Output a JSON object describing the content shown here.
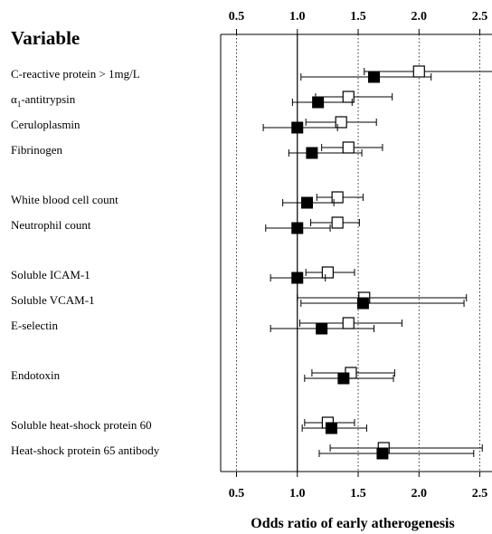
{
  "chart_data": {
    "type": "scatter",
    "subtype": "forest-plot",
    "title": "",
    "row_header": "Variable",
    "xlabel": "Odds ratio of early atherogenesis",
    "ylabel": "",
    "xlim": [
      0.37,
      2.6
    ],
    "x_ticks": [
      0.5,
      1.0,
      1.5,
      2.0,
      2.5
    ],
    "x_tick_labels": [
      "0.5",
      "1.0",
      "1.5",
      "2.0",
      "2.5"
    ],
    "ticks_top_and_bottom": true,
    "grid": "dotted vertical lines at each tick",
    "reference_line": 1.0,
    "legend": "none",
    "markers": {
      "open_square_color": "#ffffff",
      "filled_square_color": "#000000",
      "line_color": "#000000"
    },
    "rows": [
      {
        "label": "C-reactive protein > 1mg/L",
        "label_prefix": "",
        "label_sub": "",
        "label_rest": "",
        "group": 0,
        "open": {
          "or": 2.0,
          "lo": 1.55,
          "hi": 2.65
        },
        "filled": {
          "or": 1.63,
          "lo": 1.03,
          "hi": 2.1
        }
      },
      {
        "label": "",
        "label_prefix": "α",
        "label_sub": "1",
        "label_rest": "-antitrypsin",
        "group": 0,
        "open": {
          "or": 1.42,
          "lo": 1.15,
          "hi": 1.78
        },
        "filled": {
          "or": 1.17,
          "lo": 0.96,
          "hi": 1.45
        }
      },
      {
        "label": "Ceruloplasmin",
        "label_prefix": "",
        "label_sub": "",
        "label_rest": "",
        "group": 0,
        "open": {
          "or": 1.36,
          "lo": 1.07,
          "hi": 1.65
        },
        "filled": {
          "or": 1.0,
          "lo": 0.72,
          "hi": 1.33
        }
      },
      {
        "label": "Fibrinogen",
        "label_prefix": "",
        "label_sub": "",
        "label_rest": "",
        "group": 0,
        "open": {
          "or": 1.42,
          "lo": 1.2,
          "hi": 1.7
        },
        "filled": {
          "or": 1.12,
          "lo": 0.93,
          "hi": 1.53
        }
      },
      {
        "label": "White blood cell count",
        "label_prefix": "",
        "label_sub": "",
        "label_rest": "",
        "group": 1,
        "open": {
          "or": 1.33,
          "lo": 1.16,
          "hi": 1.54
        },
        "filled": {
          "or": 1.08,
          "lo": 0.88,
          "hi": 1.3
        }
      },
      {
        "label": "Neutrophil count",
        "label_prefix": "",
        "label_sub": "",
        "label_rest": "",
        "group": 1,
        "open": {
          "or": 1.33,
          "lo": 1.11,
          "hi": 1.51
        },
        "filled": {
          "or": 1.0,
          "lo": 0.74,
          "hi": 1.27
        }
      },
      {
        "label": "Soluble ICAM-1",
        "label_prefix": "",
        "label_sub": "",
        "label_rest": "",
        "group": 2,
        "open": {
          "or": 1.25,
          "lo": 1.07,
          "hi": 1.47
        },
        "filled": {
          "or": 1.0,
          "lo": 0.78,
          "hi": 1.23
        }
      },
      {
        "label": "Soluble VCAM-1",
        "label_prefix": "",
        "label_sub": "",
        "label_rest": "",
        "group": 2,
        "open": {
          "or": 1.55,
          "lo": 1.0,
          "hi": 2.39
        },
        "filled": {
          "or": 1.54,
          "lo": 1.03,
          "hi": 2.37
        }
      },
      {
        "label": "E-selectin",
        "label_prefix": "",
        "label_sub": "",
        "label_rest": "",
        "group": 2,
        "open": {
          "or": 1.42,
          "lo": 1.02,
          "hi": 1.86
        },
        "filled": {
          "or": 1.2,
          "lo": 0.78,
          "hi": 1.63
        }
      },
      {
        "label": "Endotoxin",
        "label_prefix": "",
        "label_sub": "",
        "label_rest": "",
        "group": 3,
        "open": {
          "or": 1.44,
          "lo": 1.12,
          "hi": 1.8
        },
        "filled": {
          "or": 1.38,
          "lo": 1.06,
          "hi": 1.79
        }
      },
      {
        "label": "Soluble heat-shock protein 60",
        "label_prefix": "",
        "label_sub": "",
        "label_rest": "",
        "group": 4,
        "open": {
          "or": 1.25,
          "lo": 1.06,
          "hi": 1.47
        },
        "filled": {
          "or": 1.28,
          "lo": 1.04,
          "hi": 1.57
        }
      },
      {
        "label": "Heat-shock protein 65 antibody",
        "label_prefix": "",
        "label_sub": "",
        "label_rest": "",
        "group": 4,
        "open": {
          "or": 1.71,
          "lo": 1.27,
          "hi": 2.52
        },
        "filled": {
          "or": 1.7,
          "lo": 1.18,
          "hi": 2.45
        }
      }
    ]
  }
}
